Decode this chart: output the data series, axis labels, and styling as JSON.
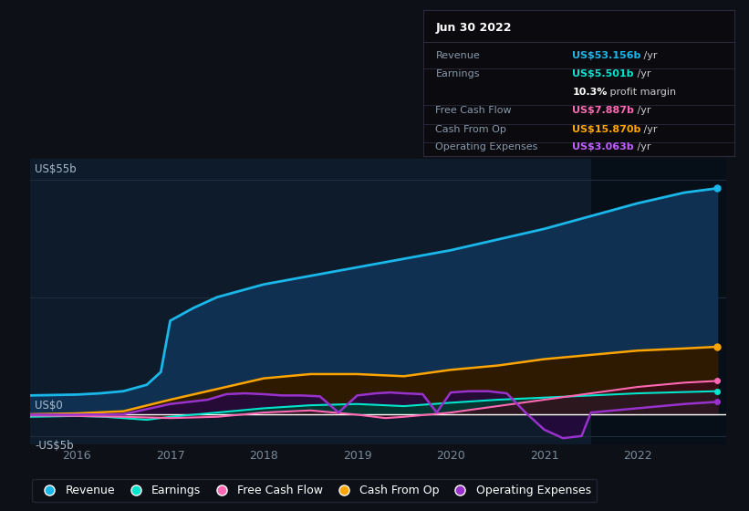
{
  "bg_color": "#0d1117",
  "plot_bg_color": "#0d1b2a",
  "grid_color": "#1e2d3d",
  "title_date": "Jun 30 2022",
  "tooltip": {
    "Revenue": {
      "value": "US$53.156b",
      "unit": " /yr",
      "color": "#1ab7ea"
    },
    "Earnings": {
      "value": "US$5.501b",
      "unit": " /yr",
      "color": "#00e5cc"
    },
    "profit_margin": {
      "bold": "10.3%",
      "rest": " profit margin"
    },
    "Free Cash Flow": {
      "value": "US$7.887b",
      "unit": " /yr",
      "color": "#ff69b4"
    },
    "Cash From Op": {
      "value": "US$15.870b",
      "unit": " /yr",
      "color": "#ffa500"
    },
    "Operating Expenses": {
      "value": "US$3.063b",
      "unit": " /yr",
      "color": "#bf5fff"
    }
  },
  "ylabel_top": "US$55b",
  "ylabel_mid": "US$0",
  "ylabel_bot": "-US$5b",
  "ylim": [
    -7,
    60
  ],
  "xlim": [
    2015.5,
    2022.95
  ],
  "x_ticks": [
    2016,
    2017,
    2018,
    2019,
    2020,
    2021,
    2022
  ],
  "highlight_x_start": 2021.5,
  "highlight_x_end": 2022.95,
  "series": {
    "Revenue": {
      "color": "#1ab7ea",
      "fill_color": "#0f3050",
      "x": [
        2015.5,
        2015.75,
        2016.0,
        2016.25,
        2016.5,
        2016.75,
        2016.9,
        2017.0,
        2017.25,
        2017.5,
        2017.75,
        2018.0,
        2018.5,
        2019.0,
        2019.5,
        2020.0,
        2020.5,
        2021.0,
        2021.5,
        2022.0,
        2022.5,
        2022.85
      ],
      "y": [
        4.5,
        4.6,
        4.7,
        5.0,
        5.5,
        7.0,
        10.0,
        22.0,
        25.0,
        27.5,
        29.0,
        30.5,
        32.5,
        34.5,
        36.5,
        38.5,
        41.0,
        43.5,
        46.5,
        49.5,
        52.0,
        53.0
      ]
    },
    "Earnings": {
      "color": "#00e5cc",
      "fill_color": "#003d30",
      "x": [
        2015.5,
        2016.0,
        2016.3,
        2016.5,
        2016.75,
        2017.0,
        2017.5,
        2018.0,
        2018.5,
        2019.0,
        2019.5,
        2020.0,
        2020.5,
        2021.0,
        2021.5,
        2022.0,
        2022.5,
        2022.85
      ],
      "y": [
        -0.5,
        -0.3,
        -0.5,
        -0.8,
        -1.2,
        -0.5,
        0.5,
        1.5,
        2.2,
        2.5,
        2.0,
        2.8,
        3.5,
        4.0,
        4.5,
        5.0,
        5.3,
        5.5
      ]
    },
    "FreeCashFlow": {
      "color": "#ff69b4",
      "fill_color": "#3d0a1a",
      "x": [
        2015.5,
        2016.0,
        2016.5,
        2017.0,
        2017.5,
        2018.0,
        2018.5,
        2019.0,
        2019.3,
        2019.5,
        2020.0,
        2020.5,
        2021.0,
        2021.5,
        2022.0,
        2022.5,
        2022.85
      ],
      "y": [
        -0.2,
        -0.3,
        -0.5,
        -0.8,
        -0.5,
        0.5,
        1.0,
        0.0,
        -0.8,
        -0.5,
        0.5,
        2.0,
        3.5,
        5.0,
        6.5,
        7.5,
        7.9
      ]
    },
    "CashFromOp": {
      "color": "#ffa500",
      "fill_color": "#2d1a00",
      "x": [
        2015.5,
        2016.0,
        2016.5,
        2017.0,
        2017.5,
        2018.0,
        2018.5,
        2019.0,
        2019.5,
        2020.0,
        2020.5,
        2021.0,
        2021.5,
        2022.0,
        2022.5,
        2022.85
      ],
      "y": [
        0.1,
        0.3,
        0.8,
        3.5,
        6.0,
        8.5,
        9.5,
        9.5,
        9.0,
        10.5,
        11.5,
        13.0,
        14.0,
        15.0,
        15.5,
        15.9
      ]
    },
    "OperatingExpenses": {
      "color": "#9932cc",
      "fill_color": "#250a3d",
      "x": [
        2015.5,
        2016.0,
        2016.5,
        2017.0,
        2017.4,
        2017.6,
        2017.8,
        2018.0,
        2018.2,
        2018.4,
        2018.6,
        2018.8,
        2019.0,
        2019.2,
        2019.35,
        2019.5,
        2019.7,
        2019.85,
        2020.0,
        2020.2,
        2020.4,
        2020.6,
        2020.8,
        2021.0,
        2021.2,
        2021.4,
        2021.5,
        2022.0,
        2022.5,
        2022.85
      ],
      "y": [
        0.0,
        0.0,
        0.1,
        2.5,
        3.5,
        4.8,
        5.0,
        4.8,
        4.5,
        4.5,
        4.3,
        0.5,
        4.5,
        5.0,
        5.2,
        5.0,
        4.8,
        0.5,
        5.2,
        5.5,
        5.5,
        5.0,
        0.5,
        -3.5,
        -5.5,
        -5.0,
        0.5,
        1.5,
        2.5,
        3.0
      ]
    }
  },
  "legend": [
    {
      "label": "Revenue",
      "color": "#1ab7ea"
    },
    {
      "label": "Earnings",
      "color": "#00e5cc"
    },
    {
      "label": "Free Cash Flow",
      "color": "#ff69b4"
    },
    {
      "label": "Cash From Op",
      "color": "#ffa500"
    },
    {
      "label": "Operating Expenses",
      "color": "#9932cc"
    }
  ]
}
